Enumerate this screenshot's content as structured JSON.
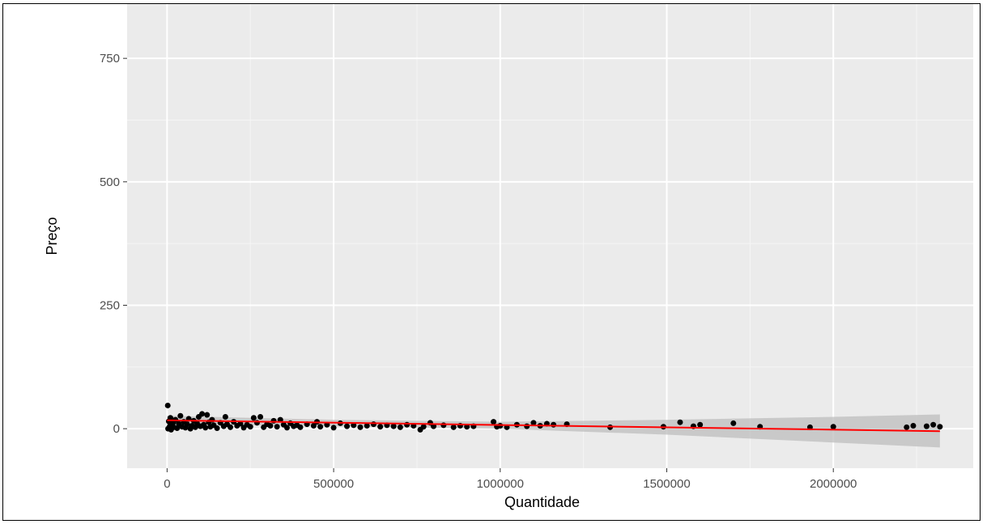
{
  "chart_data": {
    "type": "scatter",
    "title": "",
    "xlabel": "Quantidade",
    "ylabel": "Preço",
    "xlim": [
      -120000,
      2420000
    ],
    "ylim": [
      -80,
      860
    ],
    "x_ticks": [
      0,
      500000,
      1000000,
      1500000,
      2000000
    ],
    "y_ticks": [
      0,
      250,
      500,
      750
    ],
    "x_tick_labels": [
      "0",
      "500000",
      "1000000",
      "1500000",
      "2000000"
    ],
    "y_tick_labels": [
      "0",
      "250",
      "500",
      "750"
    ],
    "grid": true,
    "panel_background": "#ebebeb",
    "point_color": "#000000",
    "fit_line_color": "#ff0000",
    "ribbon_color": "#bdbdbd",
    "points": [
      {
        "x": 2000,
        "y": 47
      },
      {
        "x": 3000,
        "y": 0
      },
      {
        "x": 5000,
        "y": 15
      },
      {
        "x": 8000,
        "y": 5
      },
      {
        "x": 10000,
        "y": 22
      },
      {
        "x": 12000,
        "y": -2
      },
      {
        "x": 15000,
        "y": 8
      },
      {
        "x": 18000,
        "y": 12
      },
      {
        "x": 20000,
        "y": 3
      },
      {
        "x": 25000,
        "y": 18
      },
      {
        "x": 30000,
        "y": 1
      },
      {
        "x": 35000,
        "y": 10
      },
      {
        "x": 40000,
        "y": 26
      },
      {
        "x": 45000,
        "y": 4
      },
      {
        "x": 50000,
        "y": 14
      },
      {
        "x": 55000,
        "y": 2
      },
      {
        "x": 60000,
        "y": 9
      },
      {
        "x": 65000,
        "y": 20
      },
      {
        "x": 70000,
        "y": 0
      },
      {
        "x": 75000,
        "y": 6
      },
      {
        "x": 80000,
        "y": 16
      },
      {
        "x": 85000,
        "y": 3
      },
      {
        "x": 90000,
        "y": 11
      },
      {
        "x": 95000,
        "y": 24
      },
      {
        "x": 100000,
        "y": 5
      },
      {
        "x": 105000,
        "y": 30
      },
      {
        "x": 110000,
        "y": 8
      },
      {
        "x": 115000,
        "y": 2
      },
      {
        "x": 120000,
        "y": 28
      },
      {
        "x": 125000,
        "y": 13
      },
      {
        "x": 130000,
        "y": 4
      },
      {
        "x": 135000,
        "y": 18
      },
      {
        "x": 140000,
        "y": 7
      },
      {
        "x": 150000,
        "y": 1
      },
      {
        "x": 160000,
        "y": 12
      },
      {
        "x": 170000,
        "y": 5
      },
      {
        "x": 175000,
        "y": 24
      },
      {
        "x": 180000,
        "y": 9
      },
      {
        "x": 190000,
        "y": 3
      },
      {
        "x": 200000,
        "y": 14
      },
      {
        "x": 210000,
        "y": 6
      },
      {
        "x": 220000,
        "y": 10
      },
      {
        "x": 230000,
        "y": 2
      },
      {
        "x": 240000,
        "y": 8
      },
      {
        "x": 250000,
        "y": 4
      },
      {
        "x": 260000,
        "y": 22
      },
      {
        "x": 270000,
        "y": 12
      },
      {
        "x": 280000,
        "y": 24
      },
      {
        "x": 290000,
        "y": 3
      },
      {
        "x": 300000,
        "y": 9
      },
      {
        "x": 310000,
        "y": 6
      },
      {
        "x": 320000,
        "y": 16
      },
      {
        "x": 330000,
        "y": 4
      },
      {
        "x": 340000,
        "y": 18
      },
      {
        "x": 350000,
        "y": 8
      },
      {
        "x": 360000,
        "y": 2
      },
      {
        "x": 370000,
        "y": 11
      },
      {
        "x": 380000,
        "y": 5
      },
      {
        "x": 390000,
        "y": 7
      },
      {
        "x": 400000,
        "y": 3
      },
      {
        "x": 420000,
        "y": 9
      },
      {
        "x": 440000,
        "y": 6
      },
      {
        "x": 450000,
        "y": 14
      },
      {
        "x": 460000,
        "y": 4
      },
      {
        "x": 480000,
        "y": 8
      },
      {
        "x": 500000,
        "y": 2
      },
      {
        "x": 520000,
        "y": 11
      },
      {
        "x": 540000,
        "y": 5
      },
      {
        "x": 560000,
        "y": 7
      },
      {
        "x": 580000,
        "y": 3
      },
      {
        "x": 600000,
        "y": 6
      },
      {
        "x": 620000,
        "y": 9
      },
      {
        "x": 640000,
        "y": 4
      },
      {
        "x": 660000,
        "y": 7
      },
      {
        "x": 680000,
        "y": 5
      },
      {
        "x": 700000,
        "y": 3
      },
      {
        "x": 720000,
        "y": 8
      },
      {
        "x": 740000,
        "y": 6
      },
      {
        "x": 760000,
        "y": -2
      },
      {
        "x": 770000,
        "y": 4
      },
      {
        "x": 790000,
        "y": 12
      },
      {
        "x": 800000,
        "y": 5
      },
      {
        "x": 830000,
        "y": 7
      },
      {
        "x": 860000,
        "y": 3
      },
      {
        "x": 880000,
        "y": 6
      },
      {
        "x": 900000,
        "y": 4
      },
      {
        "x": 920000,
        "y": 5
      },
      {
        "x": 980000,
        "y": 14
      },
      {
        "x": 990000,
        "y": 4
      },
      {
        "x": 1000000,
        "y": 6
      },
      {
        "x": 1020000,
        "y": 3
      },
      {
        "x": 1050000,
        "y": 8
      },
      {
        "x": 1080000,
        "y": 5
      },
      {
        "x": 1100000,
        "y": 12
      },
      {
        "x": 1120000,
        "y": 6
      },
      {
        "x": 1140000,
        "y": 10
      },
      {
        "x": 1160000,
        "y": 8
      },
      {
        "x": 1200000,
        "y": 9
      },
      {
        "x": 1330000,
        "y": 3
      },
      {
        "x": 1490000,
        "y": 4
      },
      {
        "x": 1540000,
        "y": 13
      },
      {
        "x": 1580000,
        "y": 5
      },
      {
        "x": 1600000,
        "y": 8
      },
      {
        "x": 1700000,
        "y": 11
      },
      {
        "x": 1780000,
        "y": 4
      },
      {
        "x": 1930000,
        "y": 3
      },
      {
        "x": 2000000,
        "y": 4
      },
      {
        "x": 2220000,
        "y": 3
      },
      {
        "x": 2240000,
        "y": 6
      },
      {
        "x": 2280000,
        "y": 5
      },
      {
        "x": 2300000,
        "y": 8
      },
      {
        "x": 2320000,
        "y": 4
      }
    ],
    "fit_line": {
      "x": [
        0,
        2320000
      ],
      "y": [
        17,
        -5
      ]
    },
    "confidence_band": {
      "x": [
        0,
        500000,
        1000000,
        1500000,
        2000000,
        2320000
      ],
      "upper": [
        26,
        18,
        14,
        18,
        24,
        29
      ],
      "lower": [
        9,
        5,
        0,
        -12,
        -28,
        -38
      ]
    }
  }
}
